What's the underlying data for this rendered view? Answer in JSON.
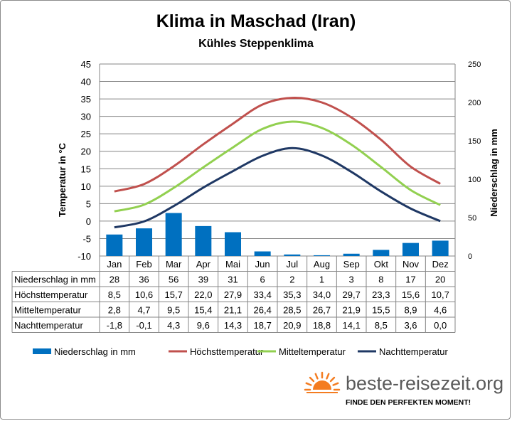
{
  "title": "Klima in Maschad (Iran)",
  "subtitle": "Kühles Steppenklima",
  "chart_data": {
    "type": "bar",
    "categories": [
      "Jan",
      "Feb",
      "Mar",
      "Apr",
      "Mai",
      "Jun",
      "Jul",
      "Aug",
      "Sep",
      "Okt",
      "Nov",
      "Dez"
    ],
    "ylabel": "Temperatur in °C",
    "y2label": "Niederschlag in mm",
    "ylim": [
      -10,
      45
    ],
    "y2lim": [
      0,
      250
    ],
    "yticks": [
      "45",
      "40",
      "35",
      "30",
      "25",
      "20",
      "15",
      "10",
      "5",
      "0",
      "-5",
      "-10"
    ],
    "y2ticks": [
      "250",
      "200",
      "150",
      "100",
      "50",
      "0"
    ],
    "grid": true,
    "legend_position": "bottom",
    "series": [
      {
        "name": "Niederschlag in mm",
        "kind": "bar",
        "axis": "right",
        "color": "#0070c0",
        "values": [
          28,
          36,
          56,
          39,
          31,
          6,
          2,
          1,
          3,
          8,
          17,
          20
        ],
        "labels": [
          "28",
          "36",
          "56",
          "39",
          "31",
          "6",
          "2",
          "1",
          "3",
          "8",
          "17",
          "20"
        ]
      },
      {
        "name": "Höchsttemperatur",
        "kind": "line",
        "axis": "left",
        "color": "#c0504d",
        "values": [
          8.5,
          10.6,
          15.7,
          22.0,
          27.9,
          33.4,
          35.3,
          34.0,
          29.7,
          23.3,
          15.6,
          10.7
        ],
        "labels": [
          "8,5",
          "10,6",
          "15,7",
          "22,0",
          "27,9",
          "33,4",
          "35,3",
          "34,0",
          "29,7",
          "23,3",
          "15,6",
          "10,7"
        ]
      },
      {
        "name": "Mitteltemperatur",
        "kind": "line",
        "axis": "left",
        "color": "#92d050",
        "values": [
          2.8,
          4.7,
          9.5,
          15.4,
          21.1,
          26.4,
          28.5,
          26.7,
          21.9,
          15.5,
          8.9,
          4.6
        ],
        "labels": [
          "2,8",
          "4,7",
          "9,5",
          "15,4",
          "21,1",
          "26,4",
          "28,5",
          "26,7",
          "21,9",
          "15,5",
          "8,9",
          "4,6"
        ]
      },
      {
        "name": "Nachttemperatur",
        "kind": "line",
        "axis": "left",
        "color": "#1f3864",
        "values": [
          -1.8,
          -0.1,
          4.3,
          9.6,
          14.3,
          18.7,
          20.9,
          18.8,
          14.1,
          8.5,
          3.6,
          0.0
        ],
        "labels": [
          "-1,8",
          "-0,1",
          "4,3",
          "9,6",
          "14,3",
          "18,7",
          "20,9",
          "18,8",
          "14,1",
          "8,5",
          "3,6",
          "0,0"
        ]
      }
    ]
  },
  "branding": {
    "name": "beste-reisezeit.org",
    "slogan": "FINDE DEN PERFEKTEN MOMENT!",
    "sun_color": "#f47c20"
  }
}
